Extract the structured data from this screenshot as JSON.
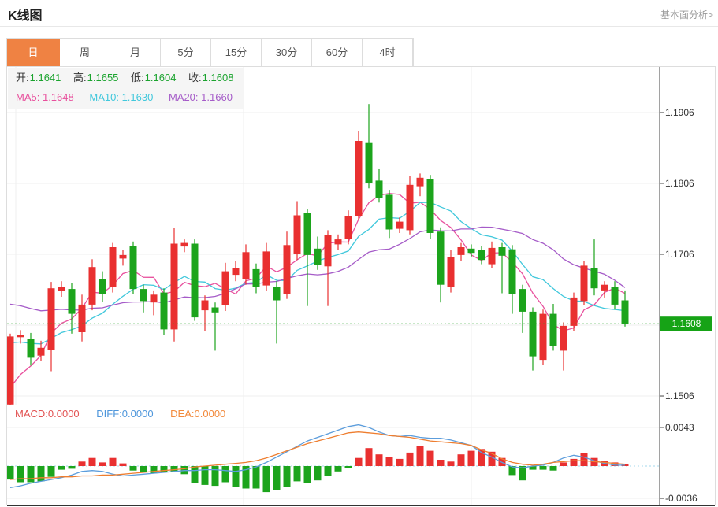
{
  "header": {
    "title": "K线图",
    "analysis_link": "基本面分析>"
  },
  "tabs": {
    "items": [
      "日",
      "周",
      "月",
      "5分",
      "15分",
      "30分",
      "60分",
      "4时"
    ],
    "active": "日"
  },
  "info_bar": {
    "open_label": "开:",
    "open_value": "1.1641",
    "high_label": "高:",
    "high_value": "1.1655",
    "low_label": "低:",
    "low_value": "1.1604",
    "close_label": "收:",
    "close_value": "1.1608",
    "ma5_label": "MA5:",
    "ma5_value": "1.1648",
    "ma10_label": "MA10:",
    "ma10_value": "1.1630",
    "ma20_label": "MA20:",
    "ma20_value": "1.1660"
  },
  "macd_bar": {
    "macd_label": "MACD:",
    "macd_value": "0.0000",
    "diff_label": "DIFF:",
    "diff_value": "0.0000",
    "dea_label": "DEA:",
    "dea_value": "0.0000"
  },
  "colors": {
    "accent_orange": "#EF8243",
    "up": "#E93030",
    "down": "#1CA41C",
    "ma5": "#E8509D",
    "ma10": "#41C8DC",
    "ma20": "#A55BC8",
    "diff_line": "#5C9DDC",
    "dea_line": "#EE7E30",
    "price_flag_bg": "#16A316",
    "price_flag_text": "#FFFFFF",
    "dotted_price_line": "#25A525",
    "macd_zero_line": "#A6D9EC",
    "grid": "#EFEFEF",
    "axis": "#444444",
    "panel_divider": "#333333"
  },
  "chart_data": {
    "type": "candlestick",
    "title": "K线图 daily candlesticks with MA5/MA10/MA20 and MACD",
    "legend": [
      "MA5",
      "MA10",
      "MA20"
    ],
    "price_panel": {
      "ylim": [
        1.14938,
        1.19704
      ],
      "yticks": [
        {
          "price": 1.1906,
          "label": "1.1906"
        },
        {
          "price": 1.1806,
          "label": "1.1806"
        },
        {
          "price": 1.1706,
          "label": "1.1706"
        },
        {
          "price": 1.1506,
          "label": "1.1506"
        }
      ],
      "grid_price_levels": [
        1.1906,
        1.1806,
        1.1706,
        1.1606,
        1.1506
      ],
      "last_price": 1.1608,
      "last_price_label": "1.1608"
    },
    "candles": [
      [
        1.1494,
        1.1594,
        1.1492,
        1.159
      ],
      [
        1.1589,
        1.1599,
        1.158,
        1.1592
      ],
      [
        1.1587,
        1.1595,
        1.1549,
        1.156
      ],
      [
        1.1563,
        1.1584,
        1.1555,
        1.1574
      ],
      [
        1.1571,
        1.1667,
        1.1541,
        1.1658
      ],
      [
        1.1654,
        1.1668,
        1.1646,
        1.166
      ],
      [
        1.1657,
        1.1665,
        1.1594,
        1.1622
      ],
      [
        1.1596,
        1.1649,
        1.1583,
        1.1635
      ],
      [
        1.1635,
        1.1699,
        1.1627,
        1.1688
      ],
      [
        1.1671,
        1.1682,
        1.1639,
        1.165
      ],
      [
        1.166,
        1.1722,
        1.1652,
        1.1716
      ],
      [
        1.17,
        1.1712,
        1.169,
        1.1705
      ],
      [
        1.1718,
        1.1724,
        1.165,
        1.1657
      ],
      [
        1.1657,
        1.1663,
        1.1624,
        1.164
      ],
      [
        1.1638,
        1.1655,
        1.162,
        1.1649
      ],
      [
        1.1652,
        1.1658,
        1.1592,
        1.16
      ],
      [
        1.16,
        1.1743,
        1.1583,
        1.1721
      ],
      [
        1.1717,
        1.1727,
        1.1709,
        1.1722
      ],
      [
        1.1721,
        1.1727,
        1.1612,
        1.1617
      ],
      [
        1.1627,
        1.1648,
        1.1598,
        1.1641
      ],
      [
        1.1631,
        1.1638,
        1.157,
        1.1624
      ],
      [
        1.1634,
        1.1694,
        1.1626,
        1.1682
      ],
      [
        1.1677,
        1.1696,
        1.1668,
        1.1686
      ],
      [
        1.1671,
        1.172,
        1.1663,
        1.1709
      ],
      [
        1.1685,
        1.1693,
        1.1651,
        1.166
      ],
      [
        1.1662,
        1.1722,
        1.1654,
        1.171
      ],
      [
        1.166,
        1.1668,
        1.158,
        1.1641
      ],
      [
        1.165,
        1.1738,
        1.1643,
        1.1719
      ],
      [
        1.1706,
        1.1781,
        1.1698,
        1.1761
      ],
      [
        1.1764,
        1.177,
        1.1633,
        1.1705
      ],
      [
        1.1714,
        1.1731,
        1.1684,
        1.1691
      ],
      [
        1.1689,
        1.174,
        1.1633,
        1.1733
      ],
      [
        1.172,
        1.1734,
        1.1712,
        1.1727
      ],
      [
        1.1728,
        1.1768,
        1.172,
        1.176
      ],
      [
        1.176,
        1.188,
        1.1754,
        1.1866
      ],
      [
        1.1863,
        1.1918,
        1.1799,
        1.1807
      ],
      [
        1.181,
        1.1826,
        1.1779,
        1.1786
      ],
      [
        1.179,
        1.1797,
        1.1729,
        1.1741
      ],
      [
        1.1742,
        1.1758,
        1.1736,
        1.1752
      ],
      [
        1.174,
        1.1817,
        1.1734,
        1.1804
      ],
      [
        1.1802,
        1.182,
        1.1788,
        1.1814
      ],
      [
        1.1812,
        1.1818,
        1.1728,
        1.1736
      ],
      [
        1.1738,
        1.1744,
        1.1638,
        1.1663
      ],
      [
        1.166,
        1.1712,
        1.1652,
        1.1702
      ],
      [
        1.1705,
        1.1722,
        1.1696,
        1.1716
      ],
      [
        1.1714,
        1.172,
        1.1702,
        1.1708
      ],
      [
        1.1712,
        1.1718,
        1.1692,
        1.1698
      ],
      [
        1.1692,
        1.1724,
        1.1686,
        1.1715
      ],
      [
        1.1716,
        1.1722,
        1.1651,
        1.1704
      ],
      [
        1.1713,
        1.1719,
        1.1622,
        1.165
      ],
      [
        1.1657,
        1.1663,
        1.1595,
        1.1625
      ],
      [
        1.1625,
        1.1631,
        1.1542,
        1.1562
      ],
      [
        1.1557,
        1.1628,
        1.155,
        1.1622
      ],
      [
        1.1622,
        1.1636,
        1.157,
        1.1576
      ],
      [
        1.157,
        1.161,
        1.1542,
        1.1605
      ],
      [
        1.1605,
        1.1652,
        1.1598,
        1.1645
      ],
      [
        1.164,
        1.1697,
        1.1634,
        1.169
      ],
      [
        1.1687,
        1.1727,
        1.1648,
        1.1658
      ],
      [
        1.1655,
        1.1668,
        1.1645,
        1.1663
      ],
      [
        1.166,
        1.1668,
        1.1628,
        1.1635
      ],
      [
        1.1641,
        1.1655,
        1.1604,
        1.1608
      ]
    ],
    "moving_averages": [
      {
        "name": "MA5",
        "period": 5,
        "seed": 1.15,
        "color": "#E8509D"
      },
      {
        "name": "MA10",
        "period": 10,
        "seed": 1.158,
        "color": "#41C8DC"
      },
      {
        "name": "MA20",
        "period": 20,
        "seed": 1.1638,
        "color": "#A55BC8"
      }
    ],
    "macd_panel": {
      "ylim": [
        -0.004474,
        0.006842
      ],
      "yticks": [
        {
          "value": 0.0043,
          "label": "0.0043"
        },
        {
          "value": -0.0036,
          "label": "-0.0036"
        }
      ],
      "hist": [
        -0.0015,
        -0.0018,
        -0.0018,
        -0.0017,
        -0.0012,
        -0.0004,
        -0.0003,
        0.0005,
        0.0009,
        0.0004,
        0.0009,
        0.0003,
        -0.0005,
        -0.0007,
        -0.0008,
        -0.0007,
        -0.0006,
        -0.0009,
        -0.0019,
        -0.0021,
        -0.0022,
        -0.0018,
        -0.0023,
        -0.0025,
        -0.0025,
        -0.0029,
        -0.0027,
        -0.0023,
        -0.0017,
        -0.0019,
        -0.0016,
        -0.0011,
        -0.0006,
        -0.0002,
        0.0009,
        0.002,
        0.0013,
        0.001,
        0.0008,
        0.0015,
        0.0022,
        0.0017,
        0.0007,
        0.0005,
        0.0013,
        0.0017,
        0.0019,
        0.0016,
        0.0009,
        -0.001,
        -0.0016,
        -0.0004,
        -0.0004,
        -0.0005,
        0.0004,
        0.0008,
        0.0014,
        0.0009,
        0.0006,
        0.0004,
        0.0002
      ],
      "diff": [
        -0.0024,
        -0.0022,
        -0.0019,
        -0.0017,
        -0.0015,
        -0.0013,
        -0.001,
        -0.0006,
        -0.0005,
        -0.0006,
        -0.0009,
        -0.0011,
        -0.001,
        -0.0009,
        -0.0008,
        -0.0007,
        -0.0006,
        -0.0005,
        -0.0005,
        -0.0004,
        -0.0004,
        -0.0005,
        -0.0006,
        -0.0004,
        -0.0001,
        0.0004,
        0.001,
        0.0016,
        0.0022,
        0.0028,
        0.0032,
        0.0036,
        0.004,
        0.0044,
        0.0046,
        0.0043,
        0.0038,
        0.0034,
        0.0033,
        0.0034,
        0.0032,
        0.0031,
        0.0031,
        0.0029,
        0.0026,
        0.0023,
        0.0015,
        0.001,
        0.0004,
        -0.0001,
        -0.0002,
        0.0,
        0.0001,
        0.0004,
        0.0009,
        0.0012,
        0.001,
        0.0006,
        0.0003,
        0.0001,
        0.0001
      ],
      "dea": [
        -0.0015,
        -0.0014,
        -0.0014,
        -0.0013,
        -0.0013,
        -0.0012,
        -0.0012,
        -0.0011,
        -0.0011,
        -0.001,
        -0.001,
        -0.0009,
        -0.0008,
        -0.0007,
        -0.0006,
        -0.0005,
        -0.0004,
        -0.0003,
        -0.0001,
        0.0,
        0.0001,
        0.0002,
        0.0003,
        0.0004,
        0.0006,
        0.0009,
        0.0013,
        0.0017,
        0.0021,
        0.0025,
        0.0028,
        0.0031,
        0.0034,
        0.0037,
        0.0038,
        0.0037,
        0.0036,
        0.0034,
        0.0033,
        0.0032,
        0.003,
        0.0028,
        0.0027,
        0.0026,
        0.0025,
        0.0023,
        0.0018,
        0.0014,
        0.0008,
        0.0004,
        0.0002,
        0.0001,
        0.0002,
        0.0004,
        0.0005,
        0.0006,
        0.0006,
        0.0005,
        0.0004,
        0.0003,
        0.0002
      ]
    }
  }
}
